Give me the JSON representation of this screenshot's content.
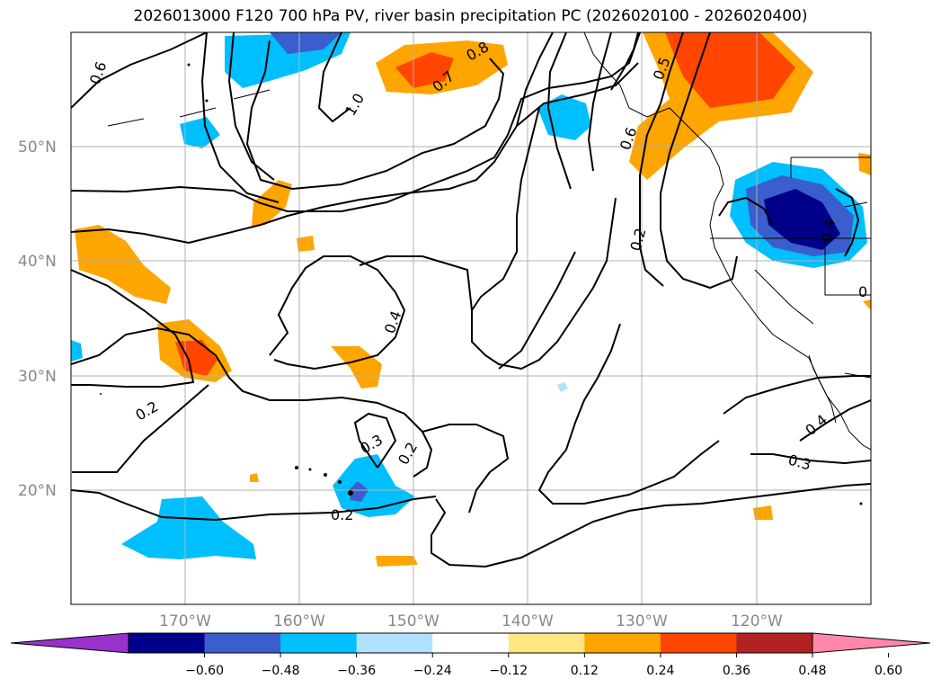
{
  "title": "2026013000 F120 700 hPa PV, river basin precipitation PC (2026020100 - 2026020400)",
  "map": {
    "lat_labels": [
      "50°N",
      "40°N",
      "30°N",
      "20°N"
    ],
    "lon_labels": [
      "170°W",
      "160°W",
      "150°W",
      "140°W",
      "130°W",
      "120°W"
    ],
    "contour_labels": [
      "0.6",
      "1.0",
      "0.7",
      "0.8",
      "0.5",
      "0.6",
      "0.2",
      "0.4",
      "0.2",
      "0.3",
      "0.2",
      "0.2",
      "0.4",
      "0.3",
      "0.4",
      "0"
    ]
  },
  "colorbar": {
    "ticks": [
      "−0.60",
      "−0.48",
      "−0.36",
      "−0.24",
      "−0.12",
      "0.12",
      "0.24",
      "0.36",
      "0.48",
      "0.60"
    ],
    "colors": [
      "#9932cc",
      "#00008b",
      "#3a5fcd",
      "#00bfff",
      "#b0e2ff",
      "#ffffff",
      "#ffe680",
      "#ffa500",
      "#ff4500",
      "#b22222",
      "#ff88aa"
    ]
  }
}
